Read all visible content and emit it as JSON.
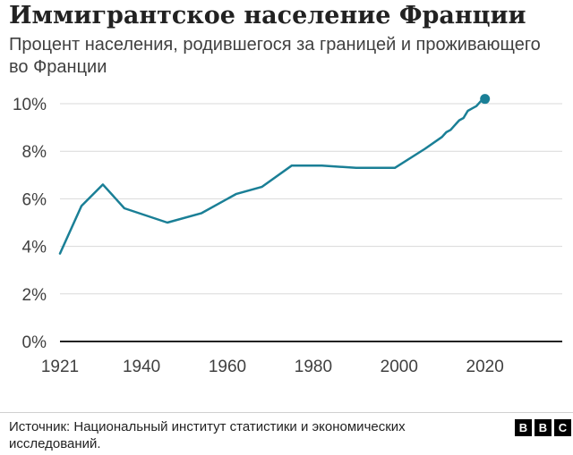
{
  "title": "Иммигрантское население Франции",
  "subtitle": "Процент населения, родившегося за границей и проживающего во Франции",
  "source": "Источник: Национальный институт статистики и экономических исследований.",
  "logo": {
    "letters": [
      "B",
      "B",
      "C"
    ]
  },
  "colors": {
    "line": "#1a7f96",
    "axis": "#222222",
    "grid": "#d9d9d9",
    "text": "#404040"
  },
  "chart_data": {
    "type": "line",
    "title": "Иммигрантское население Франции",
    "subtitle": "Процент населения, родившегося за границей и проживающего во Франции",
    "xlabel": "",
    "ylabel": "",
    "xlim": [
      1921,
      2038
    ],
    "ylim": [
      0,
      10
    ],
    "x_ticks": [
      1921,
      1940,
      1960,
      1980,
      2000,
      2020
    ],
    "x_tick_labels": [
      "1921",
      "1940",
      "1960",
      "1980",
      "2000",
      "2020"
    ],
    "y_ticks": [
      0,
      2,
      4,
      6,
      8,
      10
    ],
    "y_tick_labels": [
      "0%",
      "2%",
      "4%",
      "6%",
      "8%",
      "10%"
    ],
    "grid": true,
    "legend": "none",
    "series": [
      {
        "x": [
          1921,
          1926,
          1931,
          1936,
          1946,
          1954,
          1962,
          1968,
          1975,
          1982,
          1990,
          1999,
          2006,
          2010,
          2011,
          2012,
          2013,
          2014,
          2015,
          2016,
          2017,
          2018,
          2019,
          2020
        ],
        "values": [
          3.7,
          5.7,
          6.6,
          5.6,
          5.0,
          5.4,
          6.2,
          6.5,
          7.4,
          7.4,
          7.3,
          7.3,
          8.1,
          8.6,
          8.8,
          8.9,
          9.1,
          9.3,
          9.4,
          9.7,
          9.8,
          9.9,
          10.1,
          10.2
        ]
      }
    ],
    "end_marker": {
      "x": 2020,
      "y": 10.2
    }
  }
}
